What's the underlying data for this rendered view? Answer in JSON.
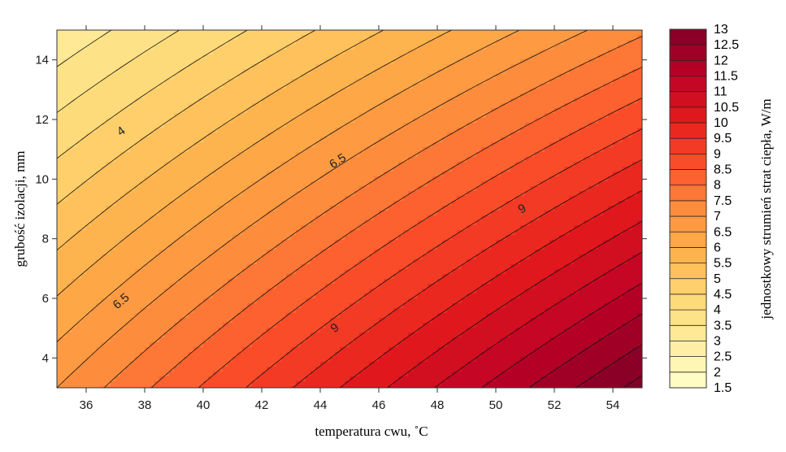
{
  "chart_data": {
    "type": "heatmap",
    "subtype": "filled-contour",
    "title": "",
    "xlabel": "temperatura cwu, ˚C",
    "ylabel": "grubość izolacji, mm",
    "colorbar_label": "jednostkowy strumień strat ciepła, W/m",
    "xlim": [
      35,
      55
    ],
    "ylim": [
      3,
      15
    ],
    "x_ticks": [
      36,
      38,
      40,
      42,
      44,
      46,
      48,
      50,
      52,
      54
    ],
    "y_ticks": [
      4,
      6,
      8,
      10,
      12,
      14
    ],
    "colorbar_range": [
      1.5,
      13
    ],
    "colorbar_levels": [
      "1.5",
      "2",
      "2.5",
      "3",
      "3.5",
      "4",
      "4.5",
      "5",
      "5.5",
      "6",
      "6.5",
      "7",
      "7.5",
      "8",
      "8.5",
      "9",
      "9.5",
      "10",
      "10.5",
      "11",
      "11.5",
      "12",
      "12.5",
      "13"
    ],
    "contour_step": 0.5,
    "corner_values": {
      "x35_y15": 3.1,
      "x55_y15": 7.4,
      "x35_y3": 7.0,
      "x55_y3": 13.2
    },
    "contour_labels": [
      {
        "text": "4",
        "x": 37.2,
        "y": 11.6
      },
      {
        "text": "6.5",
        "x": 44.6,
        "y": 10.6
      },
      {
        "text": "6.5",
        "x": 37.2,
        "y": 5.9
      },
      {
        "text": "9",
        "x": 50.9,
        "y": 9.0
      },
      {
        "text": "9",
        "x": 44.5,
        "y": 5.0
      }
    ],
    "palette": [
      "#ffffcc",
      "#ffeda0",
      "#fed976",
      "#feb24c",
      "#fd8d3c",
      "#fc4e2a",
      "#e31a1c",
      "#bd0026",
      "#800026"
    ]
  }
}
